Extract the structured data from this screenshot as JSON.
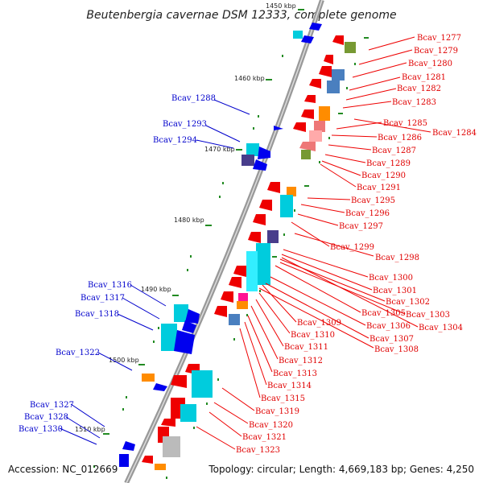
{
  "title": "Beutenbergia cavernae DSM 12333, complete genome",
  "footer_left": "Accession: NC_012669",
  "footer_right": "Topology: circular; Length: 4,669,183 bp; Genes: 4,250",
  "colors": {
    "forward": "#0000ee",
    "reverse": "#ee0000",
    "cyan": "#00ccdd",
    "light_cyan": "#33eeff",
    "steel_blue": "#4a7fbf",
    "orange": "#ff8c00",
    "olive": "#779933",
    "pink": "#ee7777",
    "dark_purple": "#483d8b",
    "magenta": "#ff1493",
    "gray": "#bbbbbb",
    "tick": "#228b22",
    "red_label": "#e00000",
    "blue_label": "#0000cc"
  },
  "kbp_ticks": [
    "1450 kbp",
    "1460 kbp",
    "1470 kbp",
    "1480 kbp",
    "1490 kbp",
    "1500 kbp",
    "1510 kbp"
  ],
  "labels_red": [
    "Bcav_1277",
    "Bcav_1279",
    "Bcav_1280",
    "Bcav_1281",
    "Bcav_1282",
    "Bcav_1283",
    "Bcav_1285",
    "Bcav_1284",
    "Bcav_1286",
    "Bcav_1287",
    "Bcav_1289",
    "Bcav_1290",
    "Bcav_1291",
    "Bcav_1295",
    "Bcav_1296",
    "Bcav_1297",
    "Bcav_1299",
    "Bcav_1298",
    "Bcav_1300",
    "Bcav_1301",
    "Bcav_1302",
    "Bcav_1305",
    "Bcav_1303",
    "Bcav_1306",
    "Bcav_1304",
    "Bcav_1309",
    "Bcav_1307",
    "Bcav_1310",
    "Bcav_1308",
    "Bcav_1311",
    "Bcav_1312",
    "Bcav_1313",
    "Bcav_1314",
    "Bcav_1315",
    "Bcav_1319",
    "Bcav_1320",
    "Bcav_1321",
    "Bcav_1323"
  ],
  "labels_blue": [
    "Bcav_1288",
    "Bcav_1293",
    "Bcav_1294",
    "Bcav_1316",
    "Bcav_1317",
    "Bcav_1318",
    "Bcav_1322",
    "Bcav_1327",
    "Bcav_1328",
    "Bcav_1330"
  ]
}
